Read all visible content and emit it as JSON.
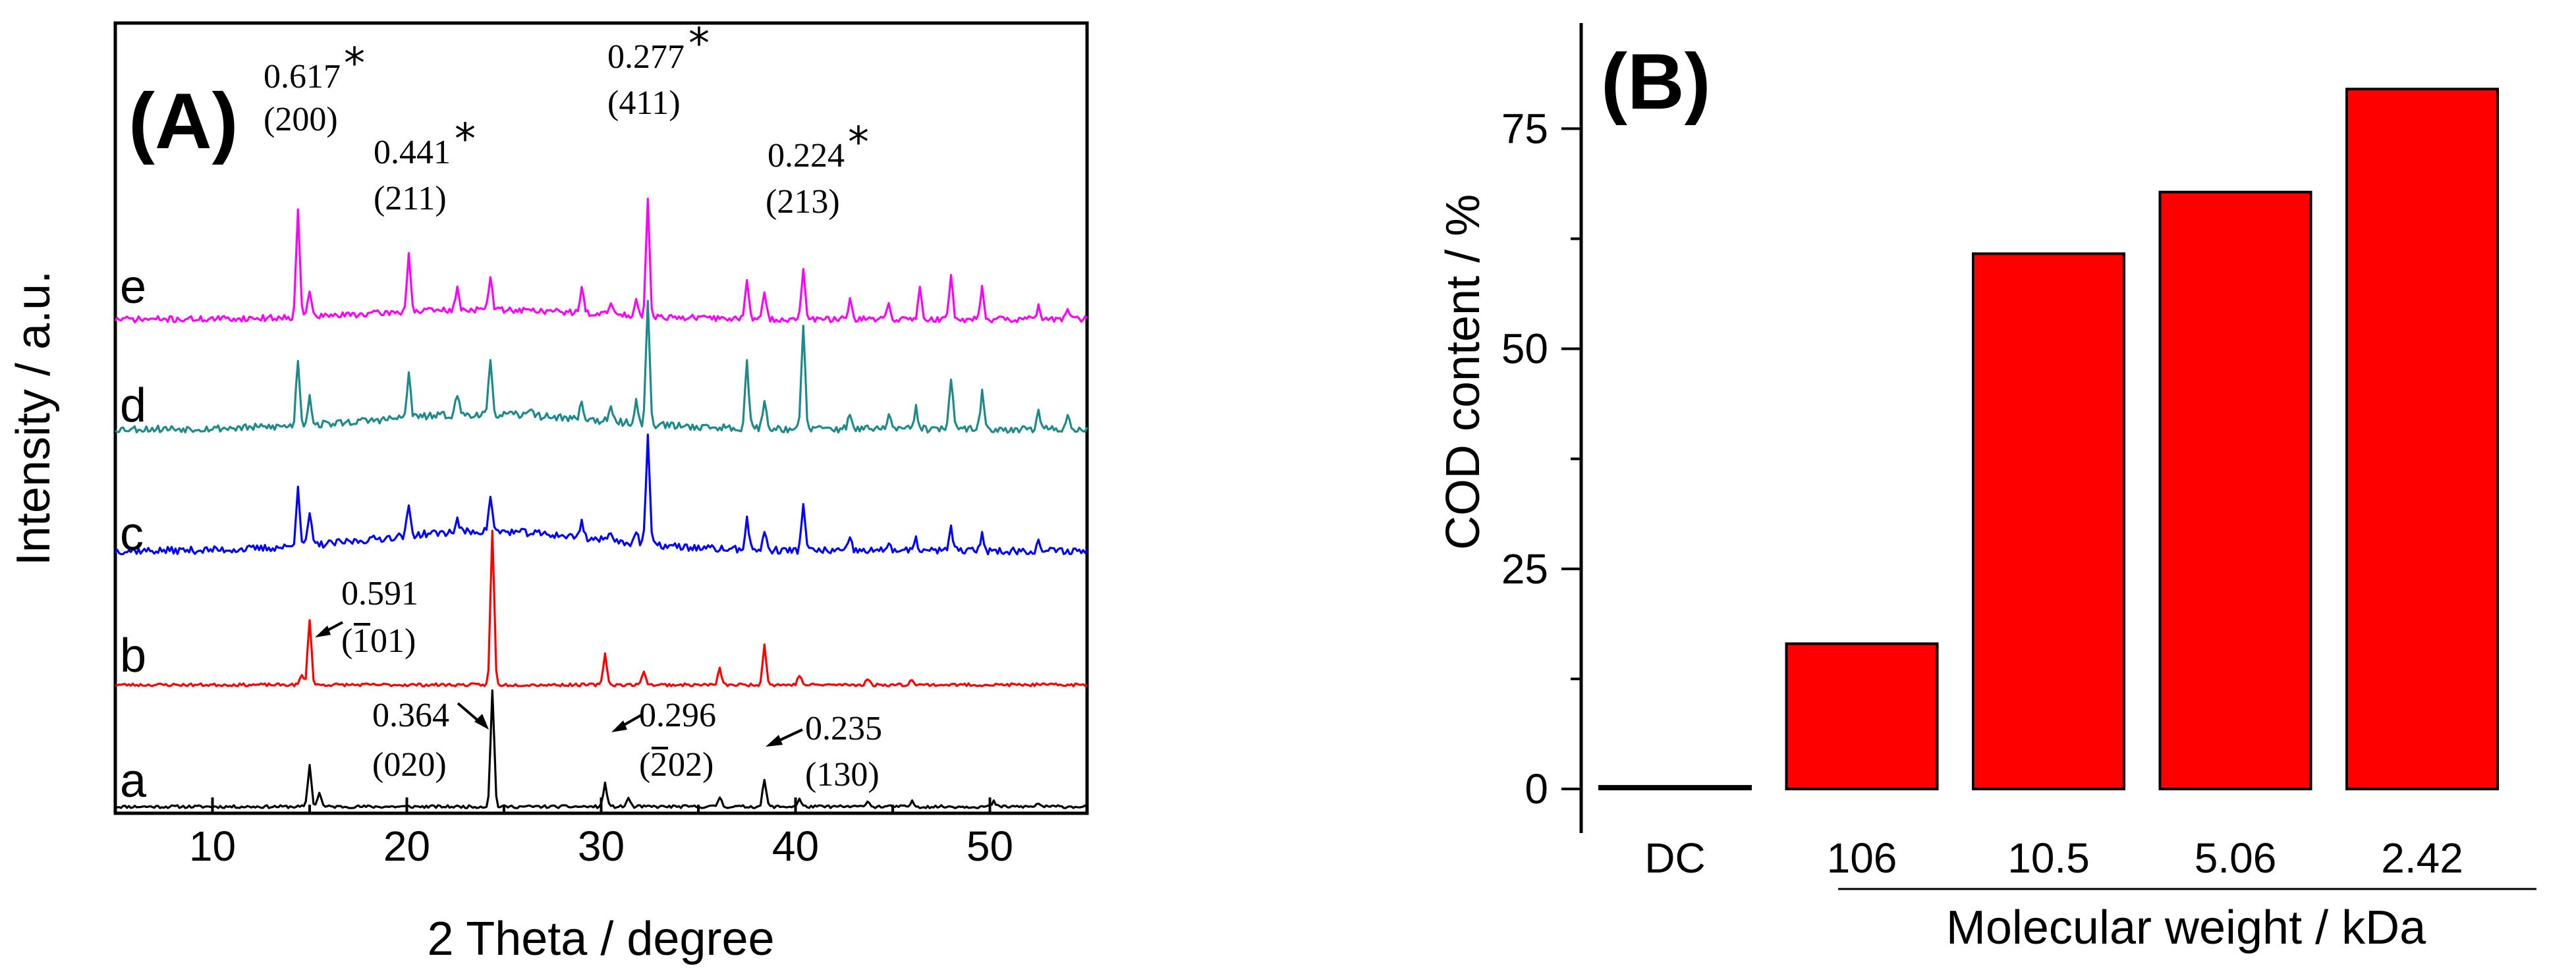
{
  "chart_data": [
    {
      "panel": "(A)",
      "type": "line",
      "xlabel": "2 Theta / degree",
      "ylabel": "Intensity / a.u.",
      "xlim": [
        5,
        55
      ],
      "xticks": [
        "10",
        "20",
        "30",
        "40",
        "50"
      ],
      "series": [
        {
          "name": "a",
          "color": "#000000",
          "baseline": 0.0,
          "noise": 0.012,
          "step": 0.1,
          "seed": 11,
          "peaks": [
            [
              15.0,
              0.34
            ],
            [
              15.5,
              0.12
            ],
            [
              24.4,
              0.95
            ],
            [
              30.2,
              0.19
            ],
            [
              31.4,
              0.07
            ],
            [
              36.1,
              0.08
            ],
            [
              38.4,
              0.22
            ],
            [
              40.2,
              0.06
            ],
            [
              43.7,
              0.05
            ],
            [
              46.0,
              0.04
            ],
            [
              50.2,
              0.04
            ],
            [
              52.5,
              0.03
            ]
          ]
        },
        {
          "name": "b",
          "color": "#ff0000",
          "baseline": 1.0,
          "noise": 0.012,
          "step": 0.1,
          "seed": 23,
          "peaks": [
            [
              15.0,
              0.54
            ],
            [
              14.6,
              0.08
            ],
            [
              24.4,
              1.27
            ],
            [
              30.2,
              0.26
            ],
            [
              32.2,
              0.12
            ],
            [
              36.1,
              0.13
            ],
            [
              38.4,
              0.33
            ],
            [
              40.2,
              0.08
            ],
            [
              43.7,
              0.05
            ],
            [
              46.0,
              0.05
            ]
          ]
        },
        {
          "name": "c",
          "color": "#0000ff",
          "baseline": 2.1,
          "noise": 0.03,
          "step": 0.1,
          "seed": 37,
          "hump": [
            24,
            8,
            0.16
          ],
          "peaks": [
            [
              14.4,
              0.5
            ],
            [
              15.0,
              0.27
            ],
            [
              20.1,
              0.24
            ],
            [
              22.6,
              0.1
            ],
            [
              24.3,
              0.29
            ],
            [
              29.0,
              0.14
            ],
            [
              30.5,
              0.09
            ],
            [
              31.8,
              0.1
            ],
            [
              32.4,
              0.9
            ],
            [
              37.5,
              0.26
            ],
            [
              38.4,
              0.15
            ],
            [
              40.4,
              0.4
            ],
            [
              42.8,
              0.09
            ],
            [
              44.8,
              0.08
            ],
            [
              46.2,
              0.09
            ],
            [
              48.0,
              0.2
            ],
            [
              49.6,
              0.14
            ],
            [
              52.5,
              0.07
            ]
          ]
        },
        {
          "name": "d",
          "color": "#1c8a8a",
          "baseline": 3.1,
          "noise": 0.03,
          "step": 0.1,
          "seed": 53,
          "hump": [
            24,
            8,
            0.12
          ],
          "peaks": [
            [
              14.4,
              0.55
            ],
            [
              15.0,
              0.25
            ],
            [
              20.1,
              0.36
            ],
            [
              22.6,
              0.17
            ],
            [
              24.3,
              0.42
            ],
            [
              26.4,
              0.08
            ],
            [
              29.0,
              0.14
            ],
            [
              30.5,
              0.1
            ],
            [
              31.8,
              0.18
            ],
            [
              32.4,
              1.0
            ],
            [
              37.5,
              0.55
            ],
            [
              38.4,
              0.24
            ],
            [
              40.4,
              0.85
            ],
            [
              42.8,
              0.14
            ],
            [
              44.8,
              0.13
            ],
            [
              46.2,
              0.17
            ],
            [
              48.0,
              0.42
            ],
            [
              49.6,
              0.3
            ],
            [
              52.5,
              0.13
            ],
            [
              54.0,
              0.11
            ]
          ]
        },
        {
          "name": "e",
          "color": "#ff00ff",
          "baseline": 4.0,
          "noise": 0.025,
          "step": 0.1,
          "seed": 71,
          "hump": [
            24,
            8,
            0.08
          ],
          "peaks": [
            [
              14.4,
              0.9
            ],
            [
              15.0,
              0.22
            ],
            [
              20.1,
              0.48
            ],
            [
              22.6,
              0.17
            ],
            [
              24.3,
              0.27
            ],
            [
              29.0,
              0.2
            ],
            [
              30.5,
              0.1
            ],
            [
              31.8,
              0.14
            ],
            [
              32.4,
              0.95
            ],
            [
              37.5,
              0.34
            ],
            [
              38.4,
              0.2
            ],
            [
              40.4,
              0.42
            ],
            [
              42.8,
              0.15
            ],
            [
              44.8,
              0.13
            ],
            [
              46.4,
              0.26
            ],
            [
              48.0,
              0.36
            ],
            [
              49.6,
              0.28
            ],
            [
              52.5,
              0.1
            ],
            [
              54.0,
              0.09
            ]
          ]
        }
      ],
      "annotations": [
        {
          "d": "0.617",
          "hkl": "(200)",
          "star": true
        },
        {
          "d": "0.441",
          "hkl": "(211)",
          "star": true
        },
        {
          "d": "0.277",
          "hkl": "(411)",
          "star": true
        },
        {
          "d": "0.224",
          "hkl": "(213)",
          "star": true
        },
        {
          "d": "0.591",
          "hkl": "(́1̅ 01)"
        },
        {
          "d": "0.364",
          "hkl": "(020)"
        },
        {
          "d": "0.296",
          "hkl": "(̅2̅02)"
        },
        {
          "d": "0.235",
          "hkl": "(130)"
        }
      ]
    },
    {
      "panel": "(B)",
      "type": "bar",
      "categories": [
        "DC",
        "106",
        "10.5",
        "5.06",
        "2.42"
      ],
      "values": [
        0,
        16.5,
        60.8,
        67.8,
        79.5
      ],
      "ylabel": "COD content / %",
      "xlabel": "Molecular weight / kDa",
      "ylim": [
        -5,
        87
      ],
      "yticks": [
        0,
        25,
        50,
        75
      ],
      "bar_color": "#ff0000"
    }
  ],
  "xrd_annotation_text": {
    "a1_d": "0.617",
    "a1_hkl": "(200)",
    "a2_d": "0.441",
    "a2_hkl": "(211)",
    "a3_d": "0.277",
    "a3_hkl": "(411)",
    "a4_d": "0.224",
    "a4_hkl": "(213)",
    "b1_d": "0.591",
    "b2_d": "0.364",
    "b2_hkl": "(020)",
    "b3_d": "0.296",
    "b4_d": "0.235",
    "b4_hkl": "(130)"
  }
}
